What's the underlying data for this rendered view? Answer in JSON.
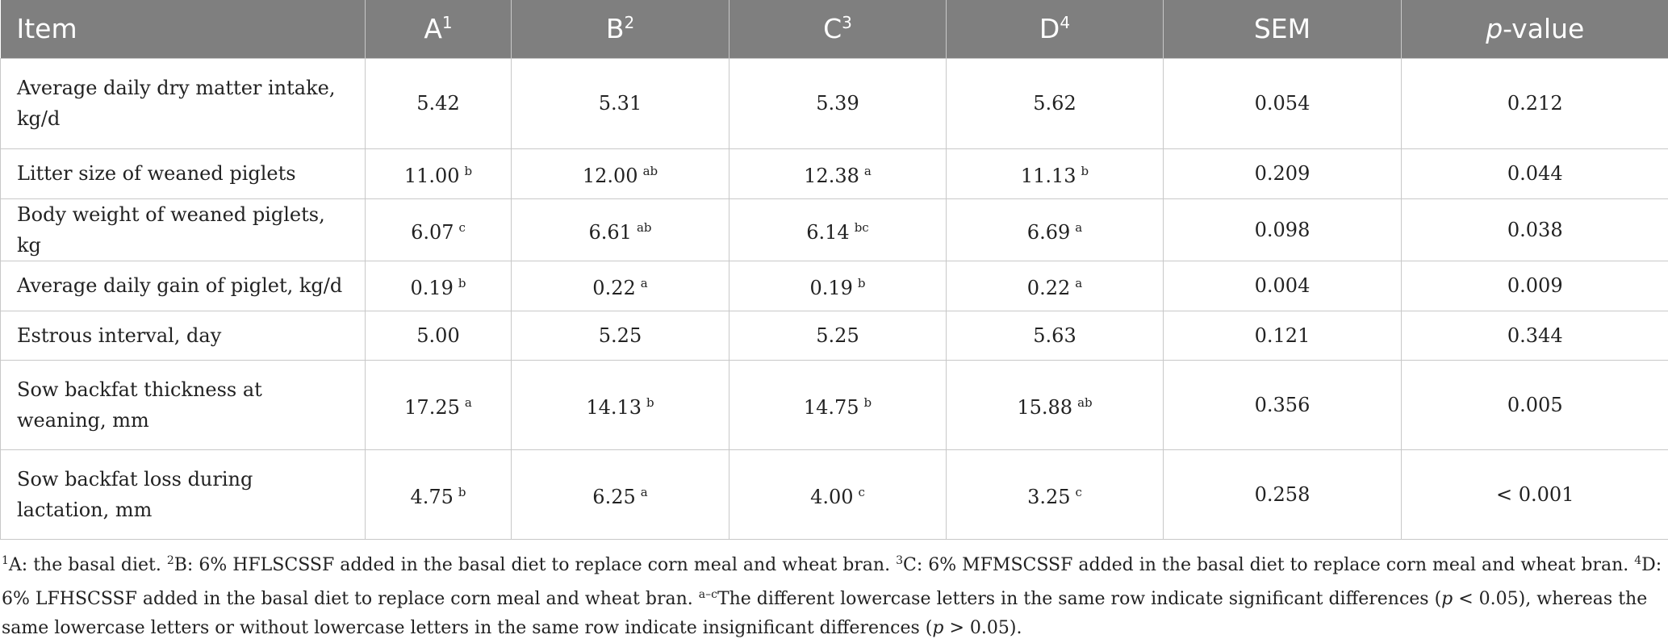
{
  "table": {
    "header": [
      {
        "text": "Item"
      },
      {
        "text": "A",
        "sup": "1"
      },
      {
        "text": "B",
        "sup": "2"
      },
      {
        "text": "C",
        "sup": "3"
      },
      {
        "text": "D",
        "sup": "4"
      },
      {
        "text": "SEM"
      },
      {
        "italic": "p",
        "text": "-value"
      }
    ],
    "rows": [
      {
        "item": "Average daily dry matter intake, kg/d",
        "cells": [
          {
            "value": "5.42"
          },
          {
            "value": "5.31"
          },
          {
            "value": "5.39"
          },
          {
            "value": "5.62"
          }
        ],
        "sem": "0.054",
        "p": "0.212"
      },
      {
        "item": "Litter size of weaned piglets",
        "cells": [
          {
            "value": "11.00",
            "sup": "b"
          },
          {
            "value": "12.00",
            "sup": "ab"
          },
          {
            "value": "12.38",
            "sup": "a"
          },
          {
            "value": "11.13",
            "sup": "b"
          }
        ],
        "sem": "0.209",
        "p": "0.044"
      },
      {
        "item": "Body weight of weaned piglets, kg",
        "cells": [
          {
            "value": "6.07",
            "sup": "c"
          },
          {
            "value": "6.61",
            "sup": "ab"
          },
          {
            "value": "6.14",
            "sup": "bc"
          },
          {
            "value": "6.69",
            "sup": "a"
          }
        ],
        "sem": "0.098",
        "p": "0.038"
      },
      {
        "item": "Average daily gain of piglet, kg/d",
        "cells": [
          {
            "value": "0.19",
            "sup": "b"
          },
          {
            "value": "0.22",
            "sup": "a"
          },
          {
            "value": "0.19",
            "sup": "b"
          },
          {
            "value": "0.22",
            "sup": "a"
          }
        ],
        "sem": "0.004",
        "p": "0.009"
      },
      {
        "item": "Estrous interval, day",
        "cells": [
          {
            "value": "5.00"
          },
          {
            "value": "5.25"
          },
          {
            "value": "5.25"
          },
          {
            "value": "5.63"
          }
        ],
        "sem": "0.121",
        "p": "0.344"
      },
      {
        "item": "Sow backfat thickness at weaning, mm",
        "cells": [
          {
            "value": "17.25",
            "sup": "a"
          },
          {
            "value": "14.13",
            "sup": "b"
          },
          {
            "value": "14.75",
            "sup": "b"
          },
          {
            "value": "15.88",
            "sup": "ab"
          }
        ],
        "sem": "0.356",
        "p": "0.005"
      },
      {
        "item": "Sow backfat loss during lactation, mm",
        "cells": [
          {
            "value": "4.75",
            "sup": "b"
          },
          {
            "value": "6.25",
            "sup": "a"
          },
          {
            "value": "4.00",
            "sup": "c"
          },
          {
            "value": "3.25",
            "sup": "c"
          }
        ],
        "sem": "0.258",
        "p": "< 0.001"
      }
    ]
  },
  "footnote": [
    {
      "sup": "1"
    },
    {
      "text": "A: the basal diet. "
    },
    {
      "sup": "2"
    },
    {
      "text": "B: 6% HFLSCSSF added in the basal diet to replace corn meal and wheat bran. "
    },
    {
      "sup": "3"
    },
    {
      "text": "C: 6% MFMSCSSF added in the basal diet to replace corn meal and wheat bran. "
    },
    {
      "sup": "4"
    },
    {
      "text": "D: 6% LFHSCSSF added in the basal diet to replace corn meal and wheat bran. "
    },
    {
      "sup": "a–c"
    },
    {
      "text": "The different lowercase letters in the same row indicate significant differences ("
    },
    {
      "italic": "p"
    },
    {
      "text": " < 0.05), whereas the same lowercase letters or without lowercase letters in the same row indicate insignificant differences ("
    },
    {
      "italic": "p"
    },
    {
      "text": " > 0.05)."
    }
  ]
}
